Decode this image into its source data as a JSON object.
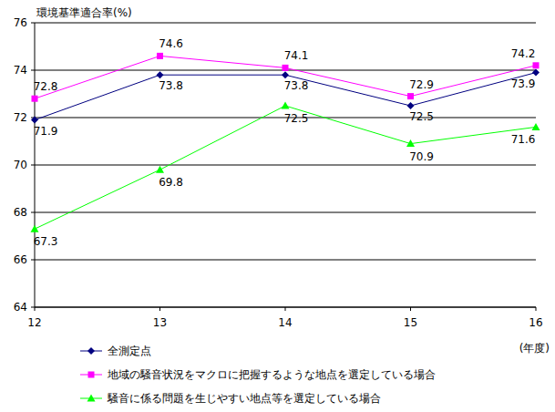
{
  "chart_data": {
    "type": "line",
    "y_label": "環境基準適合率(%)",
    "x_label": "(年度)",
    "categories": [
      "12",
      "13",
      "14",
      "15",
      "16"
    ],
    "series": [
      {
        "name": "全測定点",
        "color": "#000080",
        "marker": "diamond",
        "values": [
          71.9,
          73.8,
          73.8,
          72.5,
          73.9
        ]
      },
      {
        "name": "地域の騒音状況をマクロに把握するような地点を選定している場合",
        "color": "#ff00ff",
        "marker": "square",
        "values": [
          72.8,
          74.6,
          74.1,
          72.9,
          74.2
        ]
      },
      {
        "name": "騒音に係る問題を生じやすい地点等を選定している場合",
        "color": "#00ff00",
        "marker": "triangle",
        "values": [
          67.3,
          69.8,
          72.5,
          70.9,
          71.6
        ]
      }
    ],
    "ylim": [
      64,
      76
    ],
    "yticks": [
      64,
      66,
      68,
      70,
      72,
      74,
      76
    ],
    "grid": true,
    "data_labels": true,
    "legend": "bottom"
  }
}
